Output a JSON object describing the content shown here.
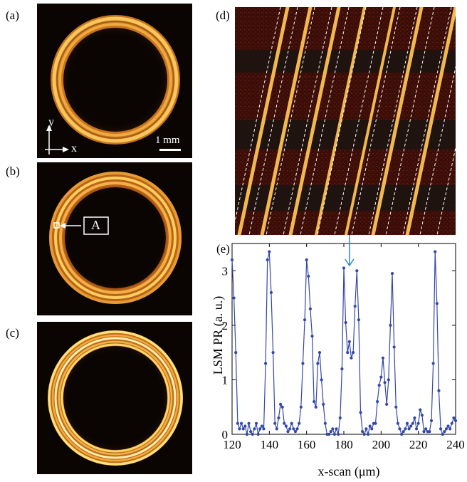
{
  "panels": {
    "a": {
      "label": "(a)",
      "axis_y": "y",
      "axis_x": "x",
      "scale_bar": "1 mm"
    },
    "b": {
      "label": "(b)",
      "marker": "A"
    },
    "c": {
      "label": "(c)"
    },
    "d": {
      "label": "(d)"
    },
    "e": {
      "label": "(e)"
    }
  },
  "colors": {
    "ring_bright": "#ffd66a",
    "ring_mid": "#d88a22",
    "ring_dark": "#3a1a08",
    "background": "#0a0503",
    "series": "#3347a8",
    "arrow": "#2a8ac8"
  },
  "chart_data": {
    "type": "line",
    "xlabel": "x-scan (μm)",
    "ylabel": "LSM PR (a. u.)",
    "xlim": [
      120,
      240
    ],
    "ylim": [
      0,
      3.5
    ],
    "xticks": [
      "120",
      "140",
      "160",
      "180",
      "200",
      "220",
      "240"
    ],
    "yticks": [
      "0",
      "1",
      "2",
      "3"
    ],
    "arrow_x": 183,
    "series": [
      {
        "x": [
          120,
          121,
          122,
          123,
          124,
          125,
          126,
          127,
          128,
          129,
          130,
          131,
          132,
          133,
          134,
          135,
          136,
          137,
          138,
          139,
          140,
          141,
          142,
          143,
          144,
          145,
          146,
          147,
          148,
          149,
          150,
          151,
          152,
          153,
          154,
          155,
          156,
          157,
          158,
          159,
          160,
          161,
          162,
          163,
          164,
          165,
          166,
          167,
          168,
          169,
          170,
          171,
          172,
          173,
          174,
          175,
          176,
          177,
          178,
          179,
          180,
          181,
          182,
          183,
          184,
          185,
          186,
          187,
          188,
          189,
          190,
          191,
          192,
          193,
          194,
          195,
          196,
          197,
          198,
          199,
          200,
          201,
          202,
          203,
          204,
          205,
          206,
          207,
          208,
          209,
          210,
          211,
          212,
          213,
          214,
          215,
          216,
          217,
          218,
          219,
          220,
          221,
          222,
          223,
          224,
          225,
          226,
          227,
          228,
          229,
          230,
          231,
          232,
          233,
          234,
          235,
          236,
          237,
          238,
          239,
          240
        ],
        "y": [
          3.2,
          2.5,
          1.5,
          0.2,
          0.1,
          0.2,
          0.1,
          0.15,
          0.0,
          0.2,
          0.05,
          0.0,
          0.1,
          0.2,
          0.0,
          0.1,
          0.15,
          0.1,
          1.3,
          3.2,
          3.35,
          2.6,
          1.5,
          0.2,
          0.1,
          0.3,
          0.55,
          0.5,
          0.2,
          0.15,
          0.05,
          0.1,
          0.2,
          0.1,
          0.05,
          0.1,
          0.2,
          0.5,
          1.3,
          2.1,
          3.2,
          2.9,
          2.3,
          1.8,
          0.6,
          0.5,
          1.3,
          1.5,
          1.0,
          0.55,
          0.2,
          0.0,
          0.0,
          0.05,
          0.1,
          0.0,
          0.1,
          0.0,
          0.3,
          1.2,
          3.05,
          2.05,
          1.5,
          1.7,
          1.4,
          1.5,
          2.35,
          3.0,
          2.1,
          0.4,
          0.05,
          0.0,
          0.1,
          0.0,
          0.15,
          0.1,
          0.2,
          0.2,
          0.6,
          0.9,
          1.05,
          1.4,
          0.95,
          0.55,
          1.0,
          2.0,
          2.95,
          1.6,
          0.5,
          0.2,
          0.1,
          0.0,
          0.05,
          0.1,
          0.2,
          0.1,
          0.15,
          0.2,
          0.3,
          0.1,
          0.2,
          0.45,
          0.35,
          0.05,
          0.1,
          0.05,
          0.05,
          0.25,
          1.3,
          3.35,
          2.4,
          0.8,
          0.1,
          0.0,
          0.05,
          0.1,
          0.15,
          0.1,
          0.2,
          0.3,
          0.25
        ]
      }
    ]
  }
}
